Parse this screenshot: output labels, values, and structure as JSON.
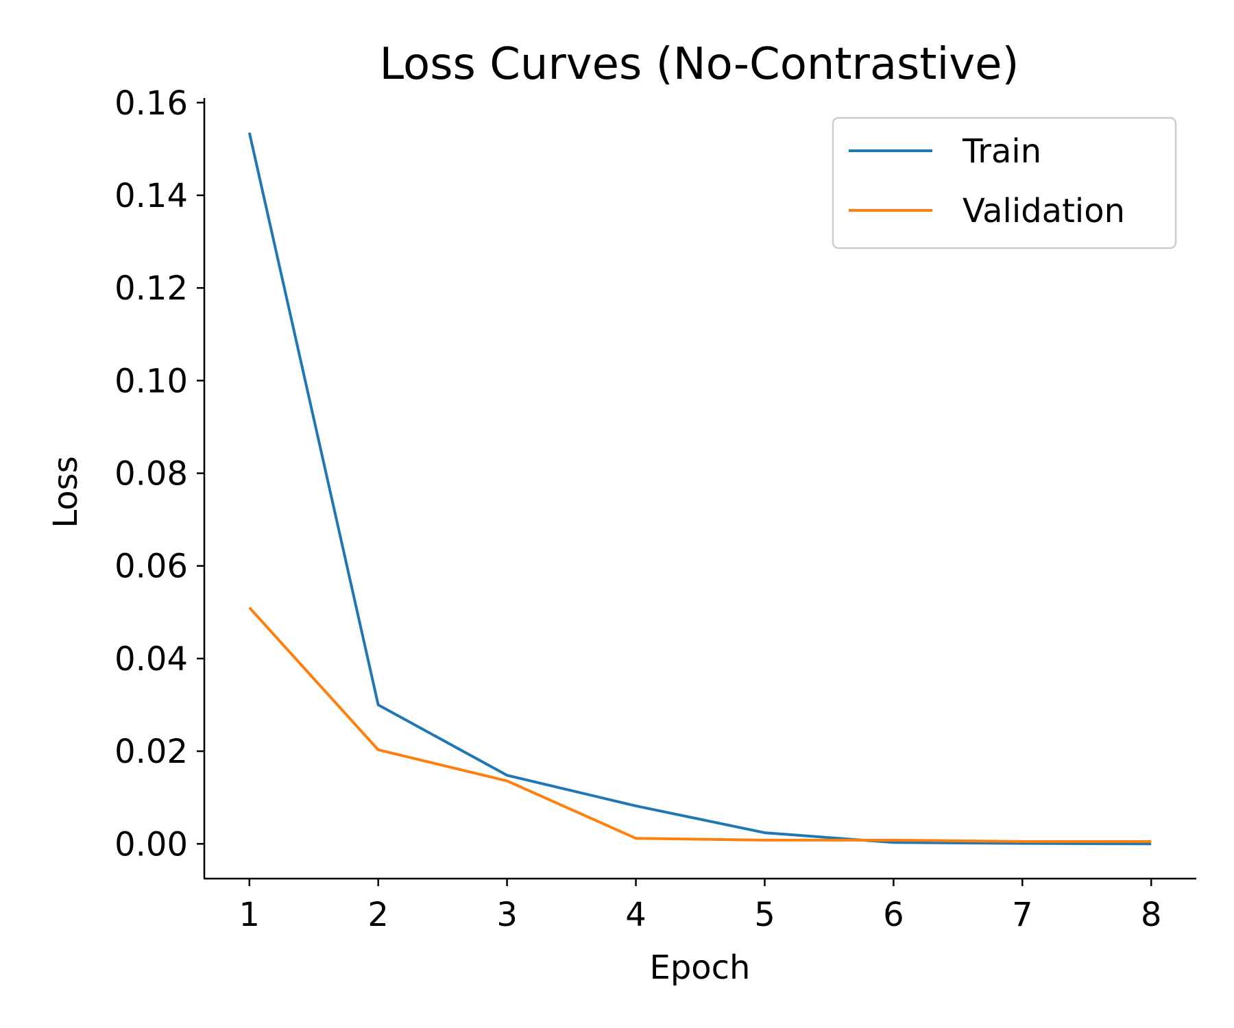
{
  "chart_data": {
    "type": "line",
    "title": "Loss Curves (No-Contrastive)",
    "xlabel": "Epoch",
    "ylabel": "Loss",
    "x": [
      1,
      2,
      3,
      4,
      5,
      6,
      7,
      8
    ],
    "xticks": [
      "1",
      "2",
      "3",
      "4",
      "5",
      "6",
      "7",
      "8"
    ],
    "yticks": [
      "0.00",
      "0.02",
      "0.04",
      "0.06",
      "0.08",
      "0.10",
      "0.12",
      "0.14",
      "0.16"
    ],
    "xlim": [
      0.65,
      8.35
    ],
    "ylim": [
      -0.0075,
      0.161
    ],
    "grid": false,
    "legend_position": "top-right",
    "series": [
      {
        "name": "Train",
        "color": "#1f77b4",
        "values": [
          0.1535,
          0.03,
          0.0148,
          0.0082,
          0.0024,
          0.0003,
          0.0001,
          0.0
        ]
      },
      {
        "name": "Validation",
        "color": "#ff7f0e",
        "values": [
          0.051,
          0.0203,
          0.0136,
          0.0012,
          0.0008,
          0.0008,
          0.0005,
          0.0005
        ]
      }
    ]
  }
}
